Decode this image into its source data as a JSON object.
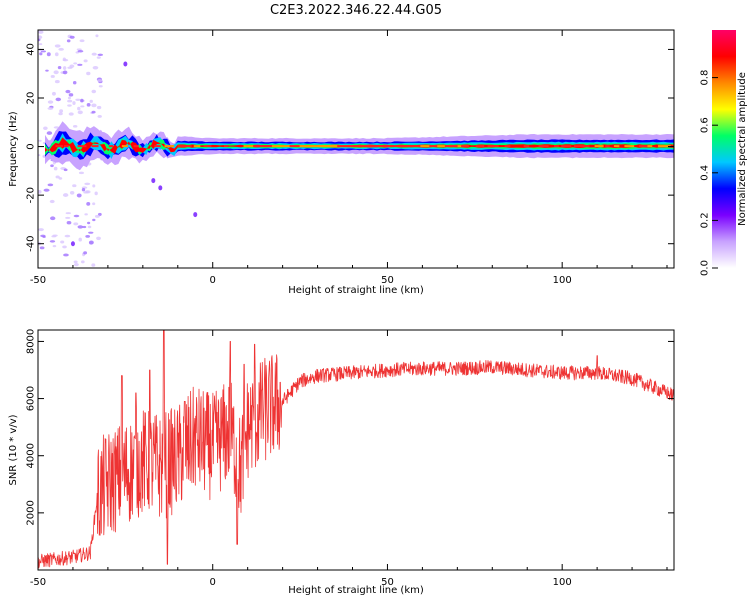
{
  "title": "C2E3.2022.346.22.44.G05",
  "chart_data": [
    {
      "type": "heatmap",
      "xlabel": "Height of straight line (km)",
      "ylabel": "Frequency (Hz)",
      "xlim": [
        -50,
        132
      ],
      "ylim": [
        -50,
        48
      ],
      "xticks": [
        -50,
        0,
        50,
        100
      ],
      "yticks": [
        -40,
        -20,
        0,
        20,
        40
      ],
      "colorbar": {
        "label": "Normalized spectral amplitude",
        "range": [
          0,
          1
        ],
        "ticks": [
          "0.0",
          "0.2",
          "0.4",
          "0.6",
          "0.8"
        ],
        "colormap": [
          "#ffffff",
          "#c8a2ff",
          "#7a00ff",
          "#0000ff",
          "#00c8ff",
          "#00ff66",
          "#ffff00",
          "#ff8800",
          "#ff0000",
          "#ff0066"
        ]
      },
      "band": {
        "center_hz": 0,
        "description_points": [
          [
            -45,
            5
          ],
          [
            -30,
            4
          ],
          [
            -20,
            3
          ],
          [
            0,
            2
          ],
          [
            50,
            2
          ],
          [
            90,
            3
          ],
          [
            130,
            3
          ]
        ]
      }
    },
    {
      "type": "line",
      "xlabel": "Height of straight line (km)",
      "ylabel": "SNR (10 * v/v)",
      "xlim": [
        -50,
        132
      ],
      "ylim": [
        0,
        8400
      ],
      "xticks": [
        -50,
        0,
        50,
        100
      ],
      "yticks": [
        2000,
        4000,
        6000,
        8000
      ],
      "color": "#ee3333",
      "envelope": [
        [
          -50,
          300
        ],
        [
          -40,
          450
        ],
        [
          -35,
          600
        ],
        [
          -33,
          2600
        ],
        [
          -30,
          3000
        ],
        [
          -25,
          3400
        ],
        [
          -20,
          3800
        ],
        [
          -15,
          3600
        ],
        [
          -10,
          3900
        ],
        [
          -5,
          4600
        ],
        [
          0,
          4300
        ],
        [
          5,
          4900
        ],
        [
          8,
          3500
        ],
        [
          10,
          5000
        ],
        [
          15,
          5600
        ],
        [
          20,
          5900
        ],
        [
          25,
          6600
        ],
        [
          30,
          6800
        ],
        [
          40,
          6900
        ],
        [
          50,
          7000
        ],
        [
          60,
          7050
        ],
        [
          70,
          7050
        ],
        [
          80,
          7100
        ],
        [
          90,
          7000
        ],
        [
          100,
          6900
        ],
        [
          110,
          6900
        ],
        [
          120,
          6700
        ],
        [
          132,
          6100
        ]
      ],
      "spikes": [
        [
          -26,
          6800
        ],
        [
          -22,
          6200
        ],
        [
          -18,
          7000
        ],
        [
          -14,
          8400
        ],
        [
          -13,
          200
        ],
        [
          -8,
          5900
        ],
        [
          5,
          8000
        ],
        [
          7,
          900
        ],
        [
          9,
          7200
        ],
        [
          12,
          7900
        ],
        [
          14,
          6300
        ],
        [
          97,
          6800
        ],
        [
          110,
          7500
        ]
      ]
    }
  ]
}
